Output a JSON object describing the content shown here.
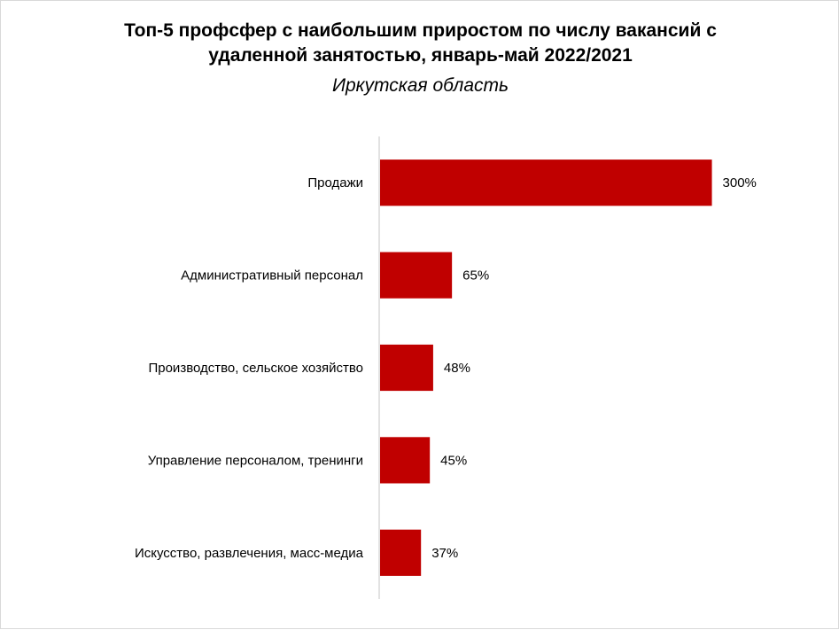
{
  "chart_data": {
    "type": "bar",
    "orientation": "horizontal",
    "title_line1": "Топ-5 профсфер с наибольшим приростом по числу вакансий с",
    "title_line2": "удаленной занятостью, январь-май 2022/2021",
    "subtitle": "Иркутская область",
    "categories": [
      "Продажи",
      "Административный персонал",
      "Производство, сельское хозяйство",
      "Управление персоналом, тренинги",
      "Искусство, развлечения, масс-медиа"
    ],
    "values": [
      300,
      65,
      48,
      45,
      37
    ],
    "value_labels": [
      "300%",
      "65%",
      "48%",
      "45%",
      "37%"
    ],
    "unit": "%",
    "bar_color": "#c00000",
    "axis_color": "#d9d9d9",
    "xlim": [
      0,
      330
    ],
    "grid": false,
    "legend": "none"
  }
}
